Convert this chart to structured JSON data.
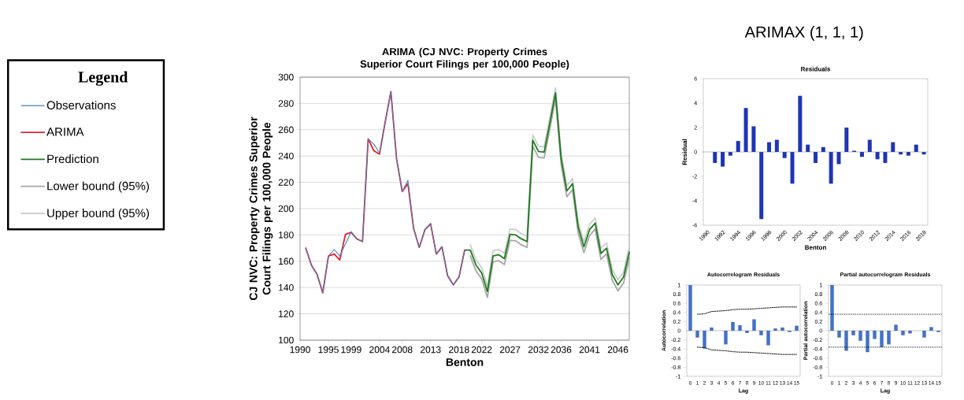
{
  "chart_data": [
    {
      "type": "line",
      "title": "ARIMA (CJ NVC: Property Crimes Superior Court Filings per 100,000 People)",
      "xlabel": "Benton",
      "ylabel": "CJ NVC: Property Crimes Superior Court Filings per 100,000 People",
      "legend": "left",
      "legend_title": "Legend",
      "grid": "y",
      "xlim": [
        1990,
        2048
      ],
      "ylim": [
        100,
        300
      ],
      "xticks": [
        1990,
        1995,
        1999,
        2004,
        2008,
        2013,
        2018,
        2022,
        2027,
        2032,
        2036,
        2041,
        2046
      ],
      "yticks": [
        100,
        120,
        140,
        160,
        180,
        200,
        220,
        240,
        260,
        280,
        300
      ],
      "series": [
        {
          "name": "Observations",
          "color": "#4a7ebb",
          "x": [
            1991,
            1992,
            1993,
            1994,
            1995,
            1996,
            1997,
            1998,
            1999,
            2000,
            2001,
            2002,
            2003,
            2004,
            2005,
            2006,
            2007,
            2008,
            2009,
            2010,
            2011,
            2012,
            2013,
            2014,
            2015,
            2016,
            2017,
            2018,
            2019
          ],
          "values": [
            170,
            157,
            150,
            136,
            164,
            169,
            164,
            173,
            182.5,
            177,
            175,
            253,
            249,
            242.5,
            266,
            289,
            238,
            213,
            221.5,
            185,
            170.5,
            184,
            188.5,
            165.5,
            171,
            149,
            142,
            148,
            168.5
          ]
        },
        {
          "name": "ARIMA",
          "color": "#e3202a",
          "x": [
            1991,
            1992,
            1993,
            1994,
            1995,
            1996,
            1997,
            1998,
            1999,
            2000,
            2001,
            2002,
            2003,
            2004,
            2005,
            2006,
            2007,
            2008,
            2009,
            2010,
            2011,
            2012,
            2013,
            2014,
            2015,
            2016,
            2017,
            2018,
            2019
          ],
          "values": [
            170,
            157,
            150,
            136,
            164,
            165.5,
            161,
            180.5,
            182,
            177,
            175,
            253,
            244,
            241.5,
            266,
            289,
            238,
            213,
            219,
            185,
            170.5,
            184,
            188.5,
            165.5,
            171,
            149,
            142,
            148,
            168.5
          ]
        },
        {
          "name": "Prediction",
          "color": "#1e7b1e",
          "x": [
            2019,
            2020,
            2021,
            2022,
            2023,
            2024,
            2025,
            2026,
            2027,
            2028,
            2029,
            2030,
            2031,
            2032,
            2033,
            2034,
            2035,
            2036,
            2037,
            2038,
            2039,
            2040,
            2041,
            2042,
            2043,
            2044,
            2045,
            2046,
            2047,
            2048
          ],
          "values": [
            168.5,
            168.5,
            157,
            151,
            137,
            164,
            165,
            162,
            180.5,
            180,
            177,
            175,
            252,
            243.5,
            243,
            265,
            288,
            238,
            213.5,
            219,
            186,
            171,
            184,
            189,
            166,
            170,
            150,
            142,
            148,
            167
          ]
        },
        {
          "name": "Lower bound (95%)",
          "color": "#a6a6a6",
          "x": [
            2020,
            2021,
            2022,
            2023,
            2024,
            2025,
            2026,
            2027,
            2028,
            2029,
            2030,
            2031,
            2032,
            2033,
            2034,
            2035,
            2036,
            2037,
            2038,
            2039,
            2040,
            2041,
            2042,
            2043,
            2044,
            2045,
            2046,
            2047,
            2048
          ],
          "values": [
            164,
            152.5,
            146.5,
            132.5,
            159.5,
            160.5,
            157.5,
            176,
            175.5,
            172.5,
            170.5,
            247.5,
            239,
            238.5,
            260.5,
            283.5,
            233.5,
            209,
            214.5,
            181.5,
            166.5,
            179.5,
            184.5,
            161.5,
            165.5,
            145.5,
            137.5,
            143.5,
            162.5
          ]
        },
        {
          "name": "Upper bound (95%)",
          "color": "#cdcdcd",
          "x": [
            2020,
            2021,
            2022,
            2023,
            2024,
            2025,
            2026,
            2027,
            2028,
            2029,
            2030,
            2031,
            2032,
            2033,
            2034,
            2035,
            2036,
            2037,
            2038,
            2039,
            2040,
            2041,
            2042,
            2043,
            2044,
            2045,
            2046,
            2047,
            2048
          ],
          "values": [
            172.5,
            161,
            155,
            141,
            168,
            169,
            166,
            184.5,
            184,
            181,
            179,
            256,
            247.5,
            247,
            269,
            292,
            242,
            217.5,
            223,
            190,
            175,
            188,
            193,
            170,
            174,
            154,
            146,
            152,
            171
          ]
        }
      ]
    },
    {
      "type": "bar",
      "title": "Residuals",
      "xlabel": "Benton",
      "ylabel": "Residual",
      "annotations": [
        "ARIMAX (1, 1, 1)"
      ],
      "color": "#1f35b5",
      "categories": [
        "1990",
        null,
        "1992",
        null,
        "1994",
        null,
        "1996",
        null,
        "1998",
        null,
        "2000",
        null,
        "2002",
        null,
        "2004",
        null,
        "2006",
        null,
        "2008",
        null,
        "2010",
        null,
        "2012",
        null,
        "2014",
        null,
        "2016",
        null,
        "2018"
      ],
      "values": [
        null,
        -0.9,
        -1.2,
        -0.3,
        0.9,
        3.6,
        2.1,
        -5.5,
        0.8,
        1.0,
        -0.5,
        -2.6,
        4.6,
        0.6,
        -0.9,
        0.4,
        -2.6,
        -1.0,
        2.0,
        0.1,
        -0.4,
        1.0,
        -0.6,
        -0.9,
        0.8,
        -0.2,
        -0.3,
        0.6,
        -0.2
      ],
      "ylim": [
        -6,
        6
      ],
      "yticks": [
        -6,
        -4,
        -2,
        0,
        2,
        4,
        6
      ]
    },
    {
      "type": "bar",
      "title": "Autocorrelogram Residuals",
      "xlabel": "Lag",
      "ylabel": "Autocorrelation",
      "categories": [
        "0",
        "1",
        "2",
        "3",
        "4",
        "5",
        "6",
        "7",
        "8",
        "9",
        "10",
        "11",
        "12",
        "13",
        "14",
        "15"
      ],
      "ylim": [
        -1,
        1
      ],
      "yticks": [
        -1,
        -0.8,
        -0.6,
        -0.4,
        -0.2,
        0,
        0.2,
        0.4,
        0.6,
        0.8,
        1
      ],
      "series": [
        {
          "type": "bar",
          "color": "#4472c4",
          "values": [
            1,
            -0.15,
            -0.39,
            0.07,
            0,
            -0.3,
            0.19,
            0.12,
            -0.05,
            0.25,
            -0.1,
            -0.32,
            0.05,
            0.07,
            -0.03,
            0.11
          ]
        },
        {
          "type": "line",
          "color": "#000000",
          "line_style": "dotted",
          "values": [
            null,
            0.36,
            0.37,
            0.42,
            0.43,
            0.44,
            0.46,
            0.47,
            0.47,
            0.48,
            0.49,
            0.5,
            0.51,
            0.52,
            0.52,
            0.52
          ]
        },
        {
          "type": "line",
          "color": "#000000",
          "line_style": "dotted",
          "values": [
            null,
            -0.36,
            -0.37,
            -0.42,
            -0.43,
            -0.44,
            -0.46,
            -0.47,
            -0.47,
            -0.48,
            -0.49,
            -0.5,
            -0.51,
            -0.52,
            -0.52,
            -0.52
          ]
        }
      ]
    },
    {
      "type": "bar",
      "title": "Partial autocorrelogram Residuals",
      "xlabel": "Lag",
      "ylabel": "Partial autocorrelation",
      "color": "#4472c4",
      "categories": [
        "0",
        "1",
        "2",
        "3",
        "4",
        "5",
        "6",
        "7",
        "8",
        "9",
        "10",
        "11",
        "12",
        "13",
        "14",
        "15"
      ],
      "values": [
        1,
        -0.15,
        -0.44,
        -0.1,
        -0.22,
        -0.47,
        -0.18,
        -0.36,
        -0.3,
        0.13,
        -0.1,
        -0.06,
        0,
        -0.15,
        0.08,
        -0.03
      ],
      "ylim": [
        -1,
        1
      ],
      "yticks": [
        -1,
        -0.8,
        -0.6,
        -0.4,
        -0.2,
        0,
        0.2,
        0.4,
        0.6,
        0.8,
        1
      ],
      "ref_lines": [
        {
          "axis": "y",
          "value": 0.36,
          "color": "#000000",
          "line_style": "dotted"
        },
        {
          "axis": "y",
          "value": -0.36,
          "color": "#000000",
          "line_style": "dotted"
        }
      ]
    }
  ]
}
